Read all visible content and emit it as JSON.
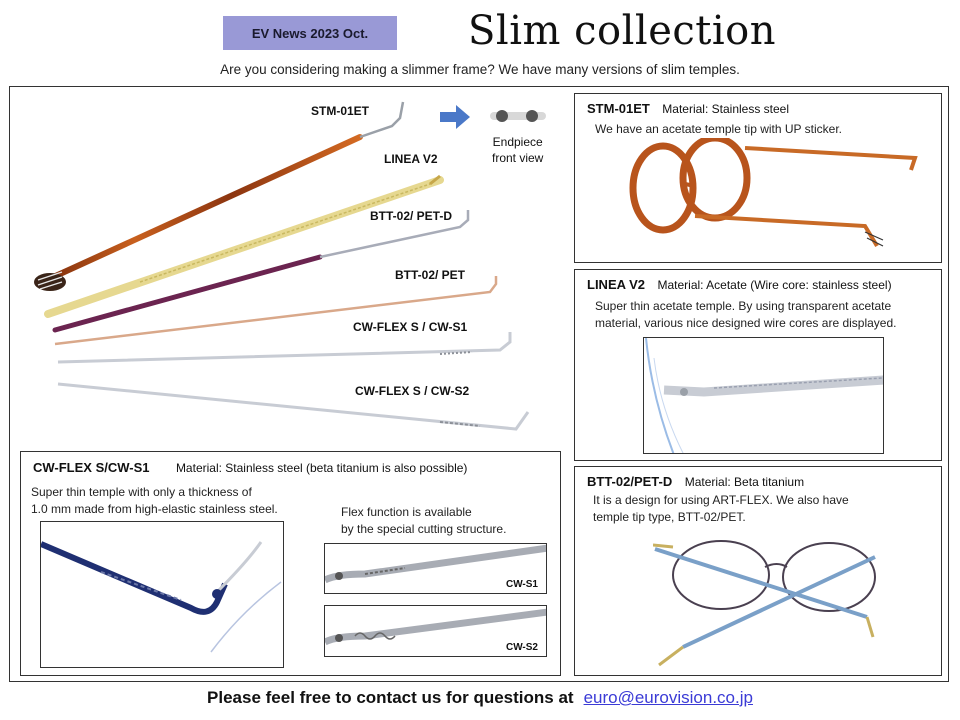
{
  "header": {
    "badge": "EV News 2023 Oct.",
    "title": "Slim collection",
    "subtitle": "Are you considering making a slimmer frame? We have many versions of slim temples."
  },
  "temples": {
    "labels": [
      "STM-01ET",
      "LINEA V2",
      "BTT-02/ PET-D",
      "BTT-02/ PET",
      "CW-FLEX S / CW-S1",
      "CW-FLEX S / CW-S2"
    ],
    "endpiece_label_1": "Endpiece",
    "endpiece_label_2": "front view"
  },
  "stm": {
    "name": "STM-01ET",
    "material": "Material:  Stainless steel",
    "desc": "We have an acetate temple tip with UP sticker."
  },
  "linea": {
    "name": "LINEA V2",
    "material": "Material:  Acetate (Wire core: stainless steel)",
    "desc1": "Super thin acetate temple. By using transparent acetate",
    "desc2": "material, various nice designed wire cores are displayed."
  },
  "btt": {
    "name": "BTT-02/PET-D",
    "material": "Material:  Beta titanium",
    "desc1": "It is a design for using ART-FLEX.   We also have",
    "desc2": "temple tip type, BTT-02/PET."
  },
  "cwflex": {
    "name": "CW-FLEX S/CW-S1",
    "material": "Material:  Stainless steel (beta titanium is also possible)",
    "desc1": "Super thin temple with only a thickness of",
    "desc2": "1.0 mm made from high-elastic stainless steel.",
    "flex1": "Flex function is available",
    "flex2": "by the special cutting structure.",
    "s1": "CW-S1",
    "s2": "CW-S2"
  },
  "footer": {
    "text": "Please feel free to contact us for questions at",
    "email": "euro@eurovision.co.jp"
  },
  "colors": {
    "badge": "#9999d6",
    "link": "#3b3bd6",
    "tortoise": "#b8541c",
    "gold": "#e6d890",
    "purple": "#6b2450",
    "rose_gold": "#d9a88a",
    "silver": "#c8ccd4",
    "navy": "#1f2f72"
  }
}
